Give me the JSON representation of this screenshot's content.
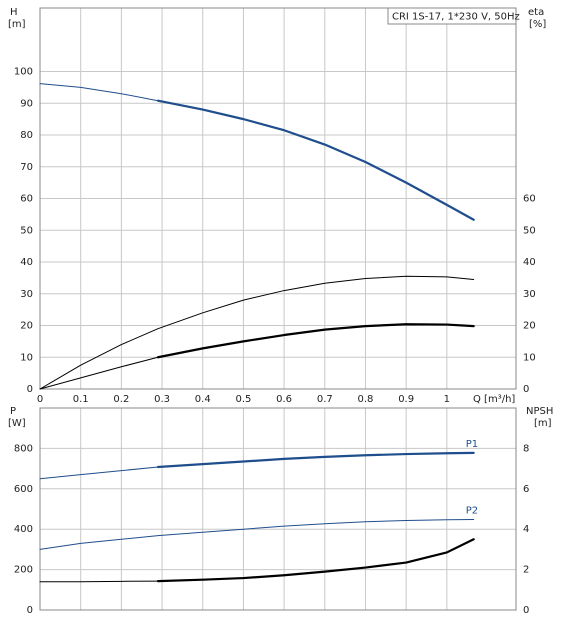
{
  "chart_data": [
    {
      "type": "line",
      "title": "CRI 1S-17, 1*230 V, 50Hz",
      "y_label": "H",
      "y_unit": "[m]",
      "y2_label": "eta",
      "y2_unit": "[%]",
      "x_label": "Q [m³/h]",
      "xlim": [
        0,
        1.17
      ],
      "xticks": [
        0,
        0.1,
        0.2,
        0.3,
        0.4,
        0.5,
        0.6,
        0.7,
        0.8,
        0.9,
        1.0
      ],
      "ylim": [
        0,
        120
      ],
      "yticks": [
        0,
        10,
        20,
        30,
        40,
        50,
        60,
        70,
        80,
        90,
        100
      ],
      "y2lim": [
        0,
        120
      ],
      "y2ticks": [
        0,
        10,
        20,
        30,
        40,
        50,
        60
      ],
      "grid": true,
      "series": [
        {
          "color": "#1f4e8c",
          "width": 1,
          "x": [
            0,
            0.1,
            0.2,
            0.29
          ],
          "values": [
            96.2,
            95,
            93,
            90.8
          ]
        },
        {
          "color": "#1f4e8c",
          "width": 2.2,
          "x": [
            0.29,
            0.4,
            0.5,
            0.6,
            0.7,
            0.8,
            0.9,
            1.0,
            1.066
          ],
          "values": [
            90.8,
            88,
            85,
            81.5,
            77,
            71.5,
            65,
            58,
            53.3
          ]
        },
        {
          "color": "#000000",
          "width": 1,
          "axis": "y2",
          "x": [
            0,
            0.1,
            0.2,
            0.29,
            0.4,
            0.5,
            0.6,
            0.7,
            0.8,
            0.9,
            1.0,
            1.066
          ],
          "values": [
            0,
            7.5,
            14,
            19,
            24,
            28,
            31,
            33.3,
            34.8,
            35.5,
            35.3,
            34.5
          ]
        },
        {
          "color": "#000000",
          "width": 1,
          "axis": "y2",
          "x": [
            0,
            0.1,
            0.2,
            0.29
          ],
          "values": [
            0,
            3.5,
            7,
            10
          ]
        },
        {
          "color": "#000000",
          "width": 2.2,
          "axis": "y2",
          "x": [
            0.29,
            0.4,
            0.5,
            0.6,
            0.7,
            0.8,
            0.9,
            1.0,
            1.066
          ],
          "values": [
            10,
            12.8,
            15,
            17,
            18.7,
            19.8,
            20.4,
            20.3,
            19.8
          ]
        }
      ]
    },
    {
      "type": "line",
      "y_label": "P",
      "y_unit": "[W]",
      "y2_label": "NPSH",
      "y2_unit": "[m]",
      "xlim": [
        0,
        1.17
      ],
      "ylim": [
        0,
        1000
      ],
      "yticks": [
        0,
        200,
        400,
        600,
        800
      ],
      "y2lim": [
        0,
        10
      ],
      "y2ticks": [
        0,
        2,
        4,
        6,
        8
      ],
      "grid": true,
      "series": [
        {
          "color": "#1f4e8c",
          "width": 1,
          "x": [
            0,
            0.1,
            0.2,
            0.29
          ],
          "values": [
            650,
            670,
            690,
            708
          ]
        },
        {
          "name": "P1",
          "color": "#1f4e8c",
          "width": 2.2,
          "x": [
            0.29,
            0.4,
            0.5,
            0.6,
            0.7,
            0.8,
            0.9,
            1.0,
            1.066
          ],
          "values": [
            708,
            722,
            735,
            748,
            758,
            766,
            772,
            776,
            778
          ]
        },
        {
          "name": "P2",
          "color": "#1f4e8c",
          "width": 1,
          "x": [
            0,
            0.1,
            0.2,
            0.29,
            0.4,
            0.5,
            0.6,
            0.7,
            0.8,
            0.9,
            1.0,
            1.066
          ],
          "values": [
            300,
            330,
            350,
            368,
            385,
            400,
            415,
            427,
            437,
            443,
            447,
            448
          ]
        },
        {
          "color": "#000000",
          "width": 1,
          "axis": "y2",
          "x": [
            0,
            0.1,
            0.2,
            0.29
          ],
          "values": [
            1.4,
            1.4,
            1.42,
            1.43
          ]
        },
        {
          "color": "#000000",
          "width": 2.2,
          "axis": "y2",
          "x": [
            0.29,
            0.4,
            0.5,
            0.6,
            0.7,
            0.8,
            0.9,
            1.0,
            1.066
          ],
          "values": [
            1.43,
            1.5,
            1.58,
            1.72,
            1.9,
            2.1,
            2.35,
            2.85,
            3.5
          ]
        }
      ]
    }
  ]
}
